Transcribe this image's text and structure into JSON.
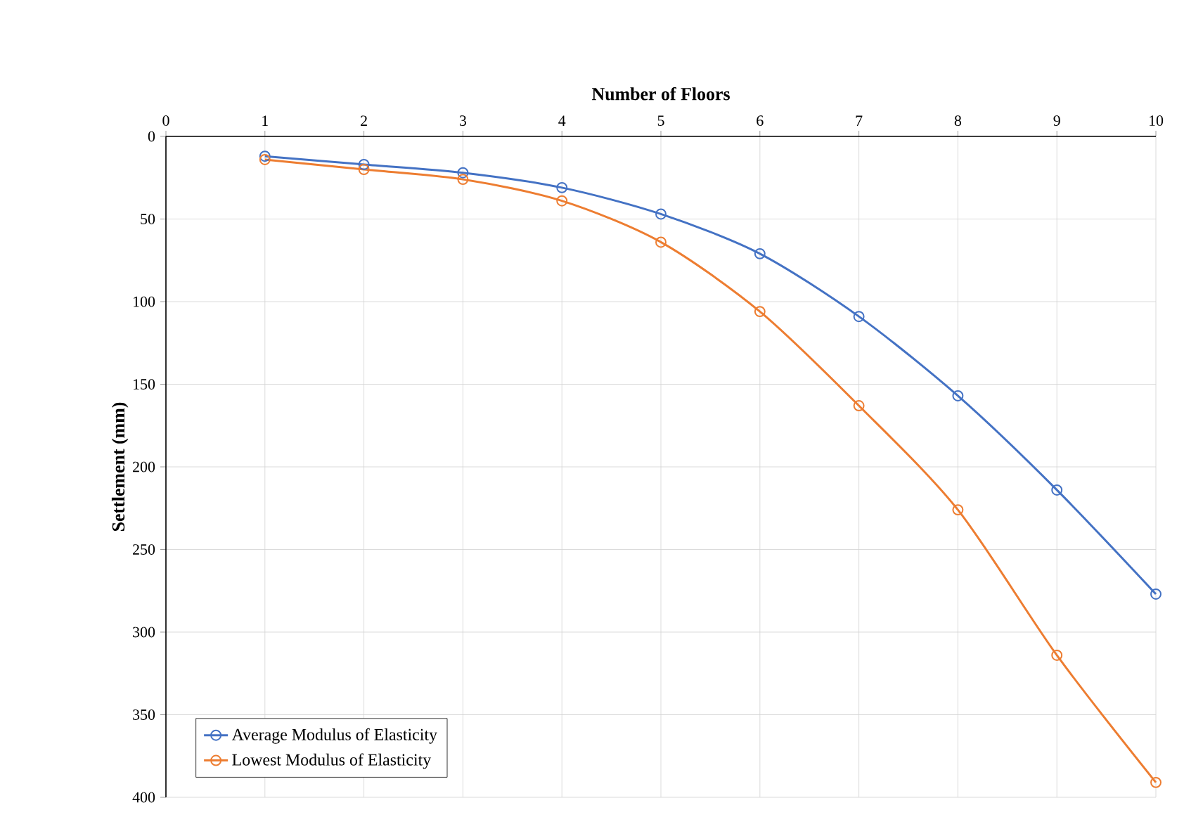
{
  "chart_data": {
    "type": "line",
    "xlabel": "Number of Floors",
    "ylabel": "Settlement (mm)",
    "x": [
      1,
      2,
      3,
      4,
      5,
      6,
      7,
      8,
      9,
      10
    ],
    "series": [
      {
        "name": "Average Modulus of Elasticity",
        "color": "#4472c4",
        "values": [
          12,
          17,
          22,
          31,
          47,
          71,
          109,
          157,
          214,
          277
        ]
      },
      {
        "name": "Lowest Modulus of Elasticity",
        "color": "#ed7d31",
        "values": [
          14,
          20,
          26,
          39,
          64,
          106,
          163,
          226,
          314,
          391
        ]
      }
    ],
    "xlim": [
      0,
      10
    ],
    "xticks": [
      0,
      1,
      2,
      3,
      4,
      5,
      6,
      7,
      8,
      9,
      10
    ],
    "ylim": [
      400,
      0
    ],
    "yticks": [
      0,
      50,
      100,
      150,
      200,
      250,
      300,
      350,
      400
    ],
    "grid": true,
    "legend": "bottom left",
    "marker": "circle",
    "line_style": "solid"
  }
}
